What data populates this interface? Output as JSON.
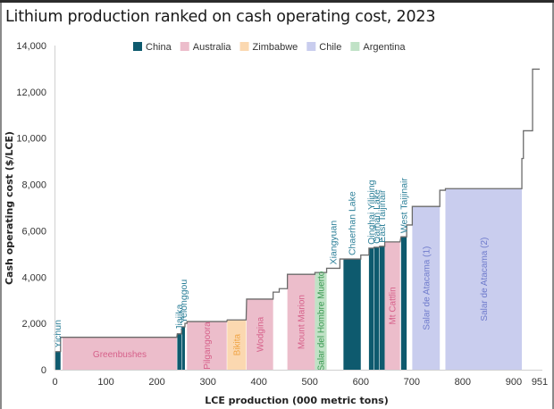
{
  "chart_data": {
    "type": "bar",
    "subtype": "cost-curve (variable-width step bars)",
    "title": "Lithium production ranked on cash operating cost, 2023",
    "xlabel": "LCE production (000 metric tons)",
    "ylabel": "Cash operating cost ($/LCE)",
    "xlim": [
      0,
      951
    ],
    "ylim": [
      0,
      14000
    ],
    "xticks": [
      0,
      100,
      200,
      300,
      400,
      500,
      600,
      700,
      800,
      900,
      951
    ],
    "yticks": [
      0,
      2000,
      4000,
      6000,
      8000,
      10000,
      12000,
      14000
    ],
    "ytick_labels": [
      "0",
      "2,000",
      "4,000",
      "6,000",
      "8,000",
      "10,000",
      "12,000",
      "14,000"
    ],
    "grid": false,
    "legend_position": "top-center",
    "legend": [
      {
        "name": "China",
        "color": "#0e5a6e",
        "label_color": "#2b7f98"
      },
      {
        "name": "Australia",
        "color": "#ecbdcb",
        "label_color": "#d6608a"
      },
      {
        "name": "Zimbabwe",
        "color": "#fbd8b0",
        "label_color": "#f0a445"
      },
      {
        "name": "Chile",
        "color": "#c9cdee",
        "label_color": "#6f7bcc"
      },
      {
        "name": "Argentina",
        "color": "#c0e2c6",
        "label_color": "#3a9a52"
      }
    ],
    "segments": [
      {
        "name": "Yichun",
        "country": "China",
        "x0": 0,
        "x1": 11,
        "cost": 780,
        "label_pos": "above"
      },
      {
        "name": "",
        "country": "",
        "x0": 11,
        "x1": 15,
        "cost": 1400
      },
      {
        "name": "Greenbushes",
        "country": "Australia",
        "x0": 15,
        "x1": 239,
        "cost": 1400,
        "label_pos": "inside-horizontal"
      },
      {
        "name": "Jiajika",
        "country": "China",
        "x0": 240,
        "x1": 248,
        "cost": 1550,
        "label_pos": "above"
      },
      {
        "name": "Yelonggou",
        "country": "China",
        "x0": 249,
        "x1": 255,
        "cost": 1850,
        "label_pos": "above"
      },
      {
        "name": "",
        "country": "",
        "x0": 255,
        "x1": 259,
        "cost": 2000
      },
      {
        "name": "Pilgangoora",
        "country": "Australia",
        "x0": 259,
        "x1": 337,
        "cost": 2080,
        "label_pos": "inside"
      },
      {
        "name": "Bikita",
        "country": "Zimbabwe",
        "x0": 338,
        "x1": 375,
        "cost": 2150,
        "label_pos": "inside"
      },
      {
        "name": "Wodgina",
        "country": "Australia",
        "x0": 376,
        "x1": 428,
        "cost": 3050,
        "label_pos": "inside"
      },
      {
        "name": "",
        "country": "",
        "x0": 428,
        "x1": 440,
        "cost": 3350
      },
      {
        "name": "",
        "country": "",
        "x0": 440,
        "x1": 456,
        "cost": 3500
      },
      {
        "name": "Mount Marion",
        "country": "Australia",
        "x0": 456,
        "x1": 510,
        "cost": 4120,
        "label_pos": "inside"
      },
      {
        "name": "Salar del Hombre Muerto",
        "country": "Argentina",
        "x0": 510,
        "x1": 533,
        "cost": 4200,
        "label_pos": "inside"
      },
      {
        "name": "Xiangyuan",
        "country": "",
        "x0": 533,
        "x1": 559,
        "cost": 4380,
        "label_pos": "above",
        "label_country": "China"
      },
      {
        "name": "",
        "country": "",
        "x0": 559,
        "x1": 566,
        "cost": 4780
      },
      {
        "name": "Chaerhan Lake",
        "country": "China",
        "x0": 566,
        "x1": 600,
        "cost": 4780,
        "label_pos": "above"
      },
      {
        "name": "",
        "country": "",
        "x0": 600,
        "x1": 616,
        "cost": 4950
      },
      {
        "name": "Qinghai Yiliping",
        "country": "China",
        "x0": 616,
        "x1": 625,
        "cost": 5250,
        "label_pos": "above"
      },
      {
        "name": "Qarhan Lake",
        "country": "China",
        "x0": 626,
        "x1": 636,
        "cost": 5290,
        "label_pos": "above"
      },
      {
        "name": "East Taijinair",
        "country": "China",
        "x0": 637,
        "x1": 647,
        "cost": 5330,
        "label_pos": "above"
      },
      {
        "name": "Mt Cattlin",
        "country": "Australia",
        "x0": 647,
        "x1": 677,
        "cost": 5520,
        "label_pos": "inside"
      },
      {
        "name": "West Taijinair",
        "country": "China",
        "x0": 679,
        "x1": 690,
        "cost": 5740,
        "label_pos": "above"
      },
      {
        "name": "",
        "country": "",
        "x0": 690,
        "x1": 701,
        "cost": 6250
      },
      {
        "name": "Salar de Atacama (1)",
        "country": "Chile",
        "x0": 701,
        "x1": 755,
        "cost": 7050,
        "label_pos": "inside"
      },
      {
        "name": "",
        "country": "",
        "x0": 755,
        "x1": 766,
        "cost": 7750
      },
      {
        "name": "Salar de Atacama (2)",
        "country": "Chile",
        "x0": 766,
        "x1": 916,
        "cost": 7820,
        "label_pos": "inside"
      },
      {
        "name": "",
        "country": "",
        "x0": 916,
        "x1": 919,
        "cost": 9120
      },
      {
        "name": "",
        "country": "",
        "x0": 919,
        "x1": 937,
        "cost": 10320
      },
      {
        "name": "",
        "country": "",
        "x0": 937,
        "x1": 951,
        "cost": 12980
      }
    ]
  }
}
